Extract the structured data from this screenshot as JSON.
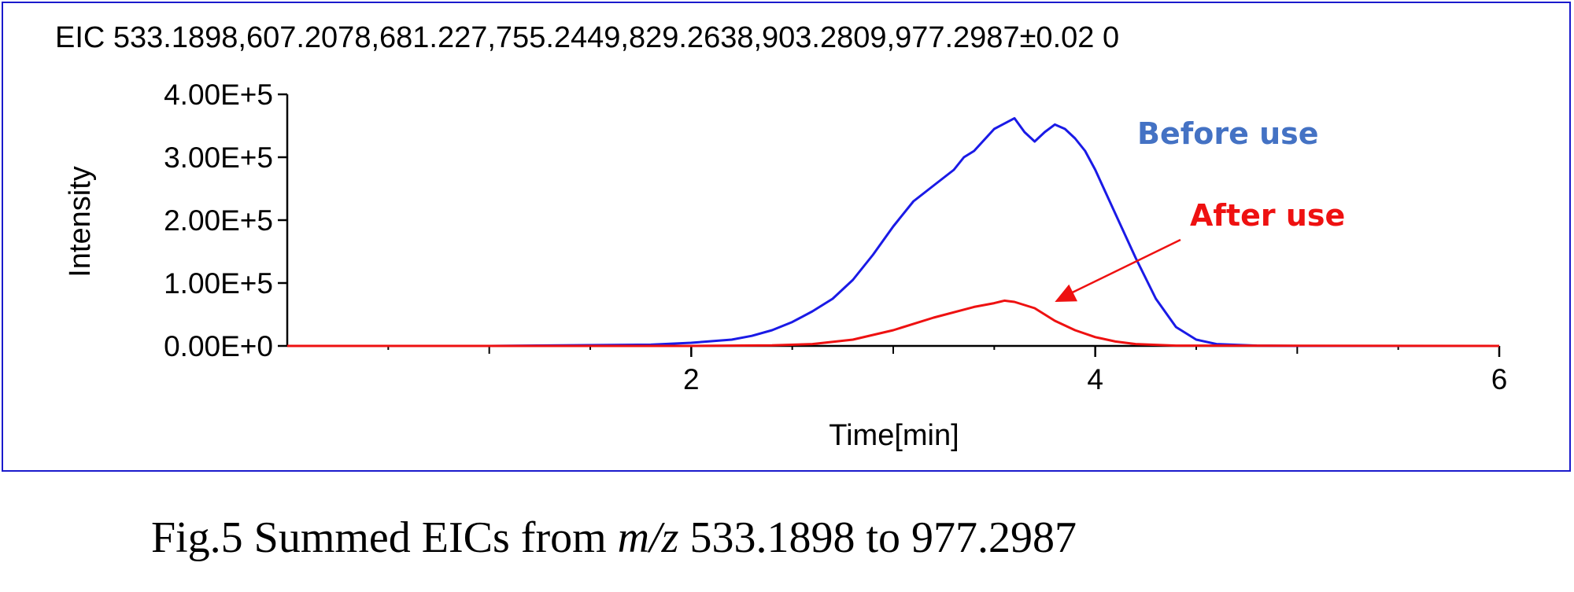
{
  "chart_data": {
    "type": "line",
    "title": "EIC 533.1898,607.2078,681.227,755.2449,829.2638,903.2809,977.2987±0.02 0",
    "xlabel": "Time[min]",
    "ylabel": "Intensity",
    "xlim": [
      0,
      6
    ],
    "ylim": [
      0,
      400000
    ],
    "x_ticks": [
      2,
      4,
      6
    ],
    "x_tick_labels": [
      "2",
      "4",
      "6"
    ],
    "y_ticks": [
      0,
      100000,
      200000,
      300000,
      400000
    ],
    "y_tick_labels": [
      "0.00E+0",
      "1.00E+5",
      "2.00E+5",
      "3.00E+5",
      "4.00E+5"
    ],
    "grid": false,
    "series": [
      {
        "name": "Before use",
        "color": "#1a1ae6",
        "x": [
          0,
          1.0,
          1.8,
          2.0,
          2.2,
          2.3,
          2.4,
          2.5,
          2.6,
          2.7,
          2.8,
          2.9,
          3.0,
          3.1,
          3.2,
          3.3,
          3.35,
          3.4,
          3.5,
          3.6,
          3.65,
          3.7,
          3.75,
          3.8,
          3.85,
          3.9,
          3.95,
          4.0,
          4.1,
          4.2,
          4.3,
          4.4,
          4.5,
          4.6,
          4.8,
          5.0,
          6.0
        ],
        "values": [
          0,
          0,
          2000,
          5000,
          10000,
          16000,
          25000,
          38000,
          55000,
          75000,
          105000,
          145000,
          190000,
          230000,
          255000,
          280000,
          300000,
          310000,
          345000,
          362000,
          340000,
          325000,
          340000,
          352000,
          345000,
          330000,
          310000,
          280000,
          210000,
          140000,
          75000,
          30000,
          10000,
          3000,
          500,
          0,
          0
        ]
      },
      {
        "name": "After use",
        "color": "#ee1111",
        "x": [
          0,
          2.0,
          2.4,
          2.6,
          2.8,
          3.0,
          3.2,
          3.4,
          3.5,
          3.55,
          3.6,
          3.7,
          3.8,
          3.9,
          4.0,
          4.1,
          4.2,
          4.4,
          6.0
        ],
        "values": [
          0,
          0,
          1000,
          3000,
          10000,
          25000,
          45000,
          62000,
          68000,
          72000,
          70000,
          60000,
          40000,
          25000,
          14000,
          7000,
          3000,
          500,
          0
        ]
      }
    ],
    "annotation": {
      "series": "After use",
      "target_x": 3.8,
      "target_y": 70000
    }
  },
  "caption": {
    "prefix": "Fig.5 Summed EICs from ",
    "italic": "m/z",
    "suffix": " 533.1898 to 977.2987"
  }
}
